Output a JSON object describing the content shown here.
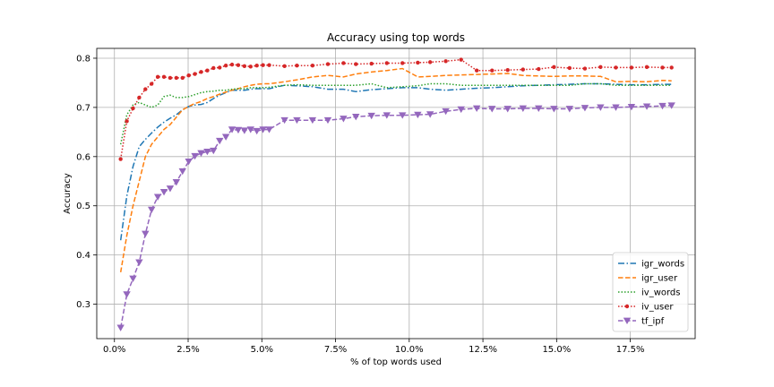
{
  "chart_data": {
    "type": "line",
    "title": "Accuracy using top words",
    "xlabel": "% of top words used",
    "ylabel": "Accuracy",
    "xlim": [
      -0.006,
      0.197
    ],
    "ylim": [
      0.23,
      0.82
    ],
    "x_ticks": [
      0.0,
      0.025,
      0.05,
      0.075,
      0.1,
      0.125,
      0.15,
      0.175
    ],
    "x_tick_labels": [
      "0.0%",
      "2.5%",
      "5.0%",
      "7.5%",
      "10.0%",
      "12.5%",
      "15.0%",
      "17.5%"
    ],
    "y_ticks": [
      0.3,
      0.4,
      0.5,
      0.6,
      0.7,
      0.8
    ],
    "y_tick_labels": [
      "0.3",
      "0.4",
      "0.5",
      "0.6",
      "0.7",
      "0.8"
    ],
    "grid": true,
    "legend_position": "lower-right",
    "x": [
      0.0021,
      0.0042,
      0.0063,
      0.0084,
      0.0105,
      0.0126,
      0.0147,
      0.0168,
      0.0189,
      0.021,
      0.0231,
      0.0252,
      0.0273,
      0.0294,
      0.0315,
      0.0336,
      0.0357,
      0.0378,
      0.0399,
      0.042,
      0.0441,
      0.0462,
      0.0483,
      0.0504,
      0.0525,
      0.0577,
      0.0619,
      0.0672,
      0.0724,
      0.0777,
      0.0819,
      0.0872,
      0.0924,
      0.0977,
      0.1029,
      0.1071,
      0.1124,
      0.1176,
      0.1229,
      0.1281,
      0.1334,
      0.1386,
      0.1439,
      0.1491,
      0.1544,
      0.1596,
      0.1649,
      0.1701,
      0.1754,
      0.1806,
      0.1859,
      0.189
    ],
    "series": [
      {
        "name": "igr_words",
        "color": "#1f77b4",
        "values": [
          0.43,
          0.52,
          0.58,
          0.62,
          0.635,
          0.648,
          0.66,
          0.67,
          0.678,
          0.685,
          0.695,
          0.702,
          0.705,
          0.706,
          0.71,
          0.718,
          0.725,
          0.73,
          0.735,
          0.735,
          0.735,
          0.737,
          0.738,
          0.738,
          0.738,
          0.745,
          0.744,
          0.742,
          0.737,
          0.737,
          0.732,
          0.736,
          0.738,
          0.74,
          0.74,
          0.737,
          0.735,
          0.737,
          0.739,
          0.74,
          0.742,
          0.744,
          0.745,
          0.746,
          0.747,
          0.748,
          0.748,
          0.747,
          0.746,
          0.746,
          0.747,
          0.747
        ]
      },
      {
        "name": "igr_user",
        "color": "#ff7f0e",
        "values": [
          0.365,
          0.44,
          0.5,
          0.55,
          0.6,
          0.625,
          0.64,
          0.655,
          0.665,
          0.68,
          0.695,
          0.702,
          0.708,
          0.712,
          0.718,
          0.722,
          0.727,
          0.731,
          0.735,
          0.738,
          0.742,
          0.745,
          0.747,
          0.748,
          0.748,
          0.752,
          0.756,
          0.762,
          0.765,
          0.762,
          0.768,
          0.772,
          0.775,
          0.779,
          0.762,
          0.763,
          0.765,
          0.766,
          0.767,
          0.768,
          0.769,
          0.765,
          0.764,
          0.763,
          0.764,
          0.764,
          0.763,
          0.752,
          0.753,
          0.752,
          0.755,
          0.754
        ]
      },
      {
        "name": "iv_words",
        "color": "#2ca02c",
        "values": [
          0.625,
          0.685,
          0.705,
          0.71,
          0.705,
          0.7,
          0.705,
          0.722,
          0.725,
          0.72,
          0.72,
          0.722,
          0.726,
          0.73,
          0.732,
          0.733,
          0.735,
          0.735,
          0.737,
          0.738,
          0.738,
          0.74,
          0.74,
          0.74,
          0.741,
          0.745,
          0.746,
          0.745,
          0.745,
          0.745,
          0.745,
          0.748,
          0.74,
          0.742,
          0.744,
          0.748,
          0.748,
          0.745,
          0.745,
          0.745,
          0.745,
          0.745,
          0.745,
          0.745,
          0.745,
          0.748,
          0.748,
          0.745,
          0.745,
          0.745,
          0.745,
          0.745
        ]
      },
      {
        "name": "iv_user",
        "color": "#d62728",
        "values": [
          0.595,
          0.672,
          0.698,
          0.72,
          0.737,
          0.748,
          0.762,
          0.762,
          0.76,
          0.76,
          0.76,
          0.765,
          0.768,
          0.772,
          0.775,
          0.78,
          0.781,
          0.785,
          0.787,
          0.786,
          0.784,
          0.783,
          0.785,
          0.786,
          0.786,
          0.784,
          0.785,
          0.785,
          0.788,
          0.79,
          0.788,
          0.789,
          0.79,
          0.79,
          0.791,
          0.792,
          0.794,
          0.797,
          0.775,
          0.775,
          0.776,
          0.777,
          0.778,
          0.782,
          0.78,
          0.779,
          0.782,
          0.781,
          0.781,
          0.782,
          0.781,
          0.781
        ]
      },
      {
        "name": "tf_ipf",
        "color": "#9467bd",
        "values": [
          0.252,
          0.32,
          0.352,
          0.385,
          0.443,
          0.492,
          0.518,
          0.528,
          0.535,
          0.548,
          0.57,
          0.59,
          0.601,
          0.607,
          0.61,
          0.612,
          0.632,
          0.64,
          0.655,
          0.654,
          0.653,
          0.655,
          0.652,
          0.655,
          0.655,
          0.674,
          0.674,
          0.674,
          0.674,
          0.677,
          0.681,
          0.683,
          0.684,
          0.684,
          0.685,
          0.686,
          0.692,
          0.696,
          0.698,
          0.697,
          0.697,
          0.698,
          0.698,
          0.697,
          0.697,
          0.699,
          0.7,
          0.7,
          0.701,
          0.702,
          0.703,
          0.704
        ]
      }
    ]
  }
}
